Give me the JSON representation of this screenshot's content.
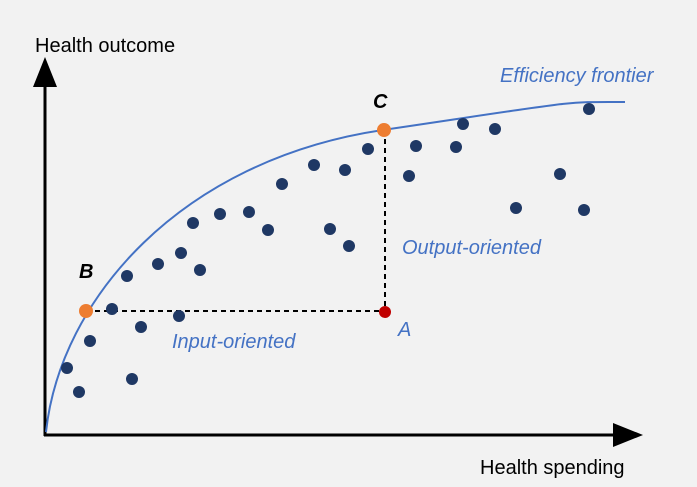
{
  "labels": {
    "y_axis": "Health outcome",
    "x_axis": "Health spending",
    "frontier": "Efficiency frontier",
    "point_c": "C",
    "point_b": "B",
    "point_a": "A",
    "output_oriented": "Output-oriented",
    "input_oriented": "Input-oriented"
  }
}
